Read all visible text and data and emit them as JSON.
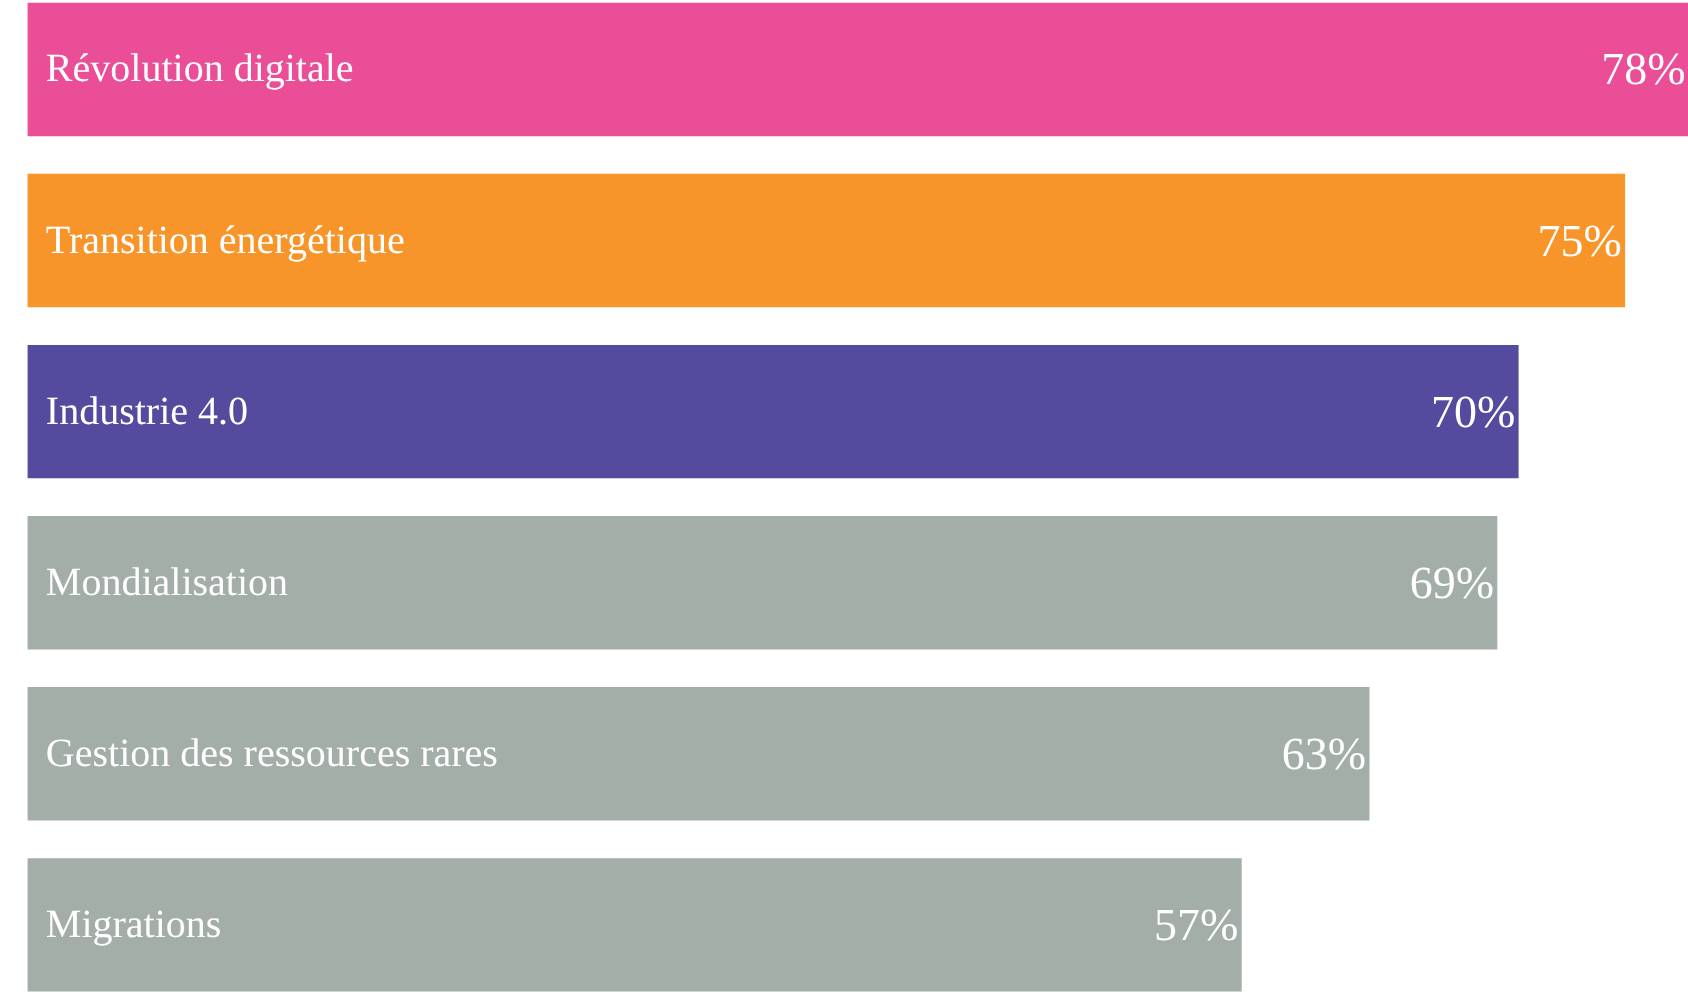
{
  "chart_data": {
    "type": "bar",
    "orientation": "horizontal",
    "categories": [
      "Révolution digitale",
      "Transition énergétique",
      "Industrie 4.0",
      "Mondialisation",
      "Gestion des ressources rares",
      "Migrations"
    ],
    "values": [
      78,
      75,
      70,
      69,
      63,
      57
    ],
    "colors": [
      "#ea4e96",
      "#f7952a",
      "#544a9e",
      "#a3aea8",
      "#a3aea8",
      "#a3aea8"
    ],
    "value_labels": [
      "78%",
      "75%",
      "70%",
      "69%",
      "63%",
      "57%"
    ],
    "xlim": [
      0,
      78
    ],
    "tick_labels": false
  }
}
